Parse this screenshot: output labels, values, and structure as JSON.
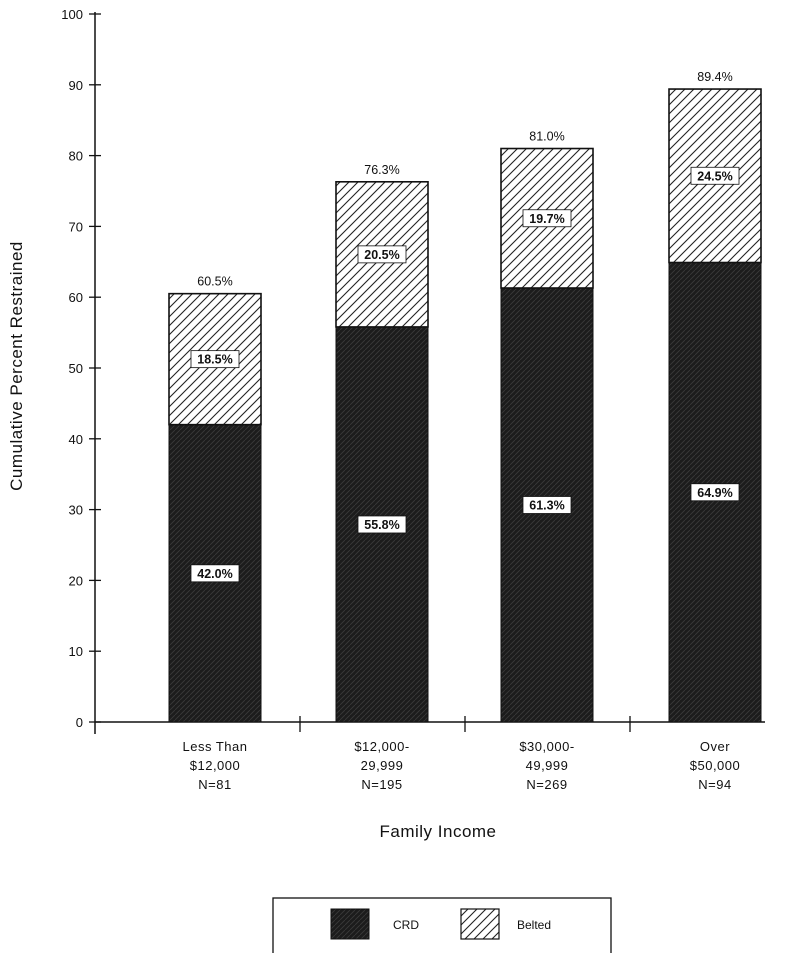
{
  "chart_data": {
    "type": "bar",
    "stacked": true,
    "categories": [
      [
        "Less Than",
        "$12,000",
        "N=81"
      ],
      [
        "$12,000-",
        "29,999",
        "N=195"
      ],
      [
        "$30,000-",
        "49,999",
        "N=269"
      ],
      [
        "Over",
        "$50,000",
        "N=94"
      ]
    ],
    "series": [
      {
        "name": "CRD",
        "values": [
          42.0,
          55.8,
          61.3,
          64.9
        ],
        "labels": [
          "42.0%",
          "55.8%",
          "61.3%",
          "64.9%"
        ]
      },
      {
        "name": "Belted",
        "values": [
          18.5,
          20.5,
          19.7,
          24.5
        ],
        "labels": [
          "18.5%",
          "20.5%",
          "19.7%",
          "24.5%"
        ]
      }
    ],
    "totals": [
      60.5,
      76.3,
      81.0,
      89.4
    ],
    "total_labels": [
      "60.5%",
      "76.3%",
      "81.0%",
      "89.4%"
    ],
    "xlabel": "Family Income",
    "ylabel": "Cumulative Percent Restrained",
    "ylim": [
      0,
      100
    ],
    "yticks": [
      0,
      10,
      20,
      30,
      40,
      50,
      60,
      70,
      80,
      90,
      100
    ],
    "grid": false,
    "legend_position": "bottom-center",
    "colors": {
      "CRD": "#1a1a1a",
      "Belted": "#ffffff",
      "axis": "#111111"
    },
    "patterns": {
      "CRD": "dark-crosshatch",
      "Belted": "diagonal-hatch"
    }
  }
}
